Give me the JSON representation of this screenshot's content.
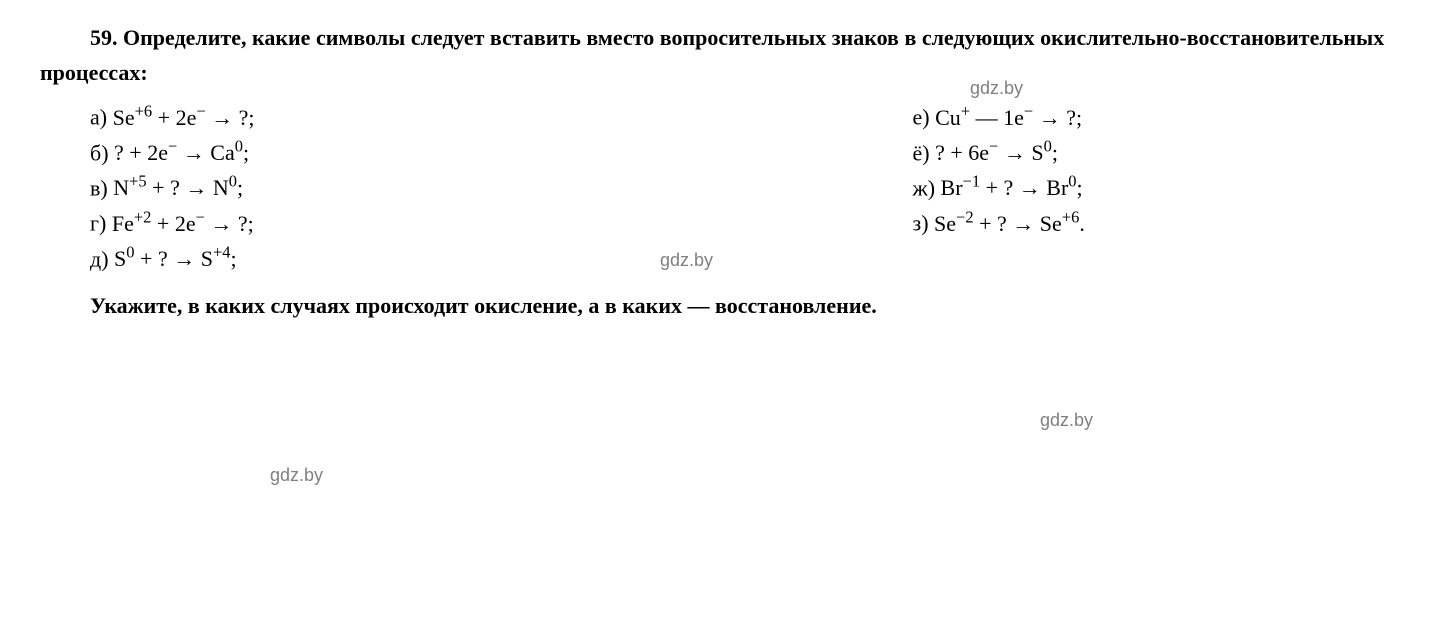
{
  "problem": {
    "number": "59.",
    "intro_text": "Определите, какие символы следует вставить вместо вопросительных знаков в следующих окислительно-восстановительных процессах:",
    "equations_left": [
      {
        "label": "а)",
        "expr": "Se<sup>+6</sup> + 2e<sup>−</sup> → ?;"
      },
      {
        "label": "б)",
        "expr": "? + 2e<sup>−</sup> → Ca<sup>0</sup>;"
      },
      {
        "label": "в)",
        "expr": "N<sup>+5</sup> + ? → N<sup>0</sup>;"
      },
      {
        "label": "г)",
        "expr": "Fe<sup>+2</sup> + 2e<sup>−</sup> → ?;"
      },
      {
        "label": "д)",
        "expr": "S<sup>0</sup> + ? → S<sup>+4</sup>;"
      }
    ],
    "equations_right": [
      {
        "label": "е)",
        "expr": "Cu<sup>+</sup> — 1e<sup>−</sup> → ?;"
      },
      {
        "label": "ё)",
        "expr": "? + 6e<sup>−</sup> → S<sup>0</sup>;"
      },
      {
        "label": "ж)",
        "expr": "Br<sup>−1</sup> + ? → Br<sup>0</sup>;"
      },
      {
        "label": "з)",
        "expr": "Se<sup>−2</sup> + ? → Se<sup>+6</sup>."
      }
    ],
    "final_text": "Укажите, в каких случаях происходит окисление, а в каких — восстановление.",
    "watermarks": [
      "gdz.by",
      "gdz.by",
      "gdz.by",
      "gdz.by"
    ]
  },
  "styling": {
    "font_family": "Georgia, Times New Roman, serif",
    "font_size_body": 22,
    "font_size_watermark": 18,
    "color_text": "#000000",
    "color_watermark": "#808080",
    "background_color": "#ffffff"
  }
}
